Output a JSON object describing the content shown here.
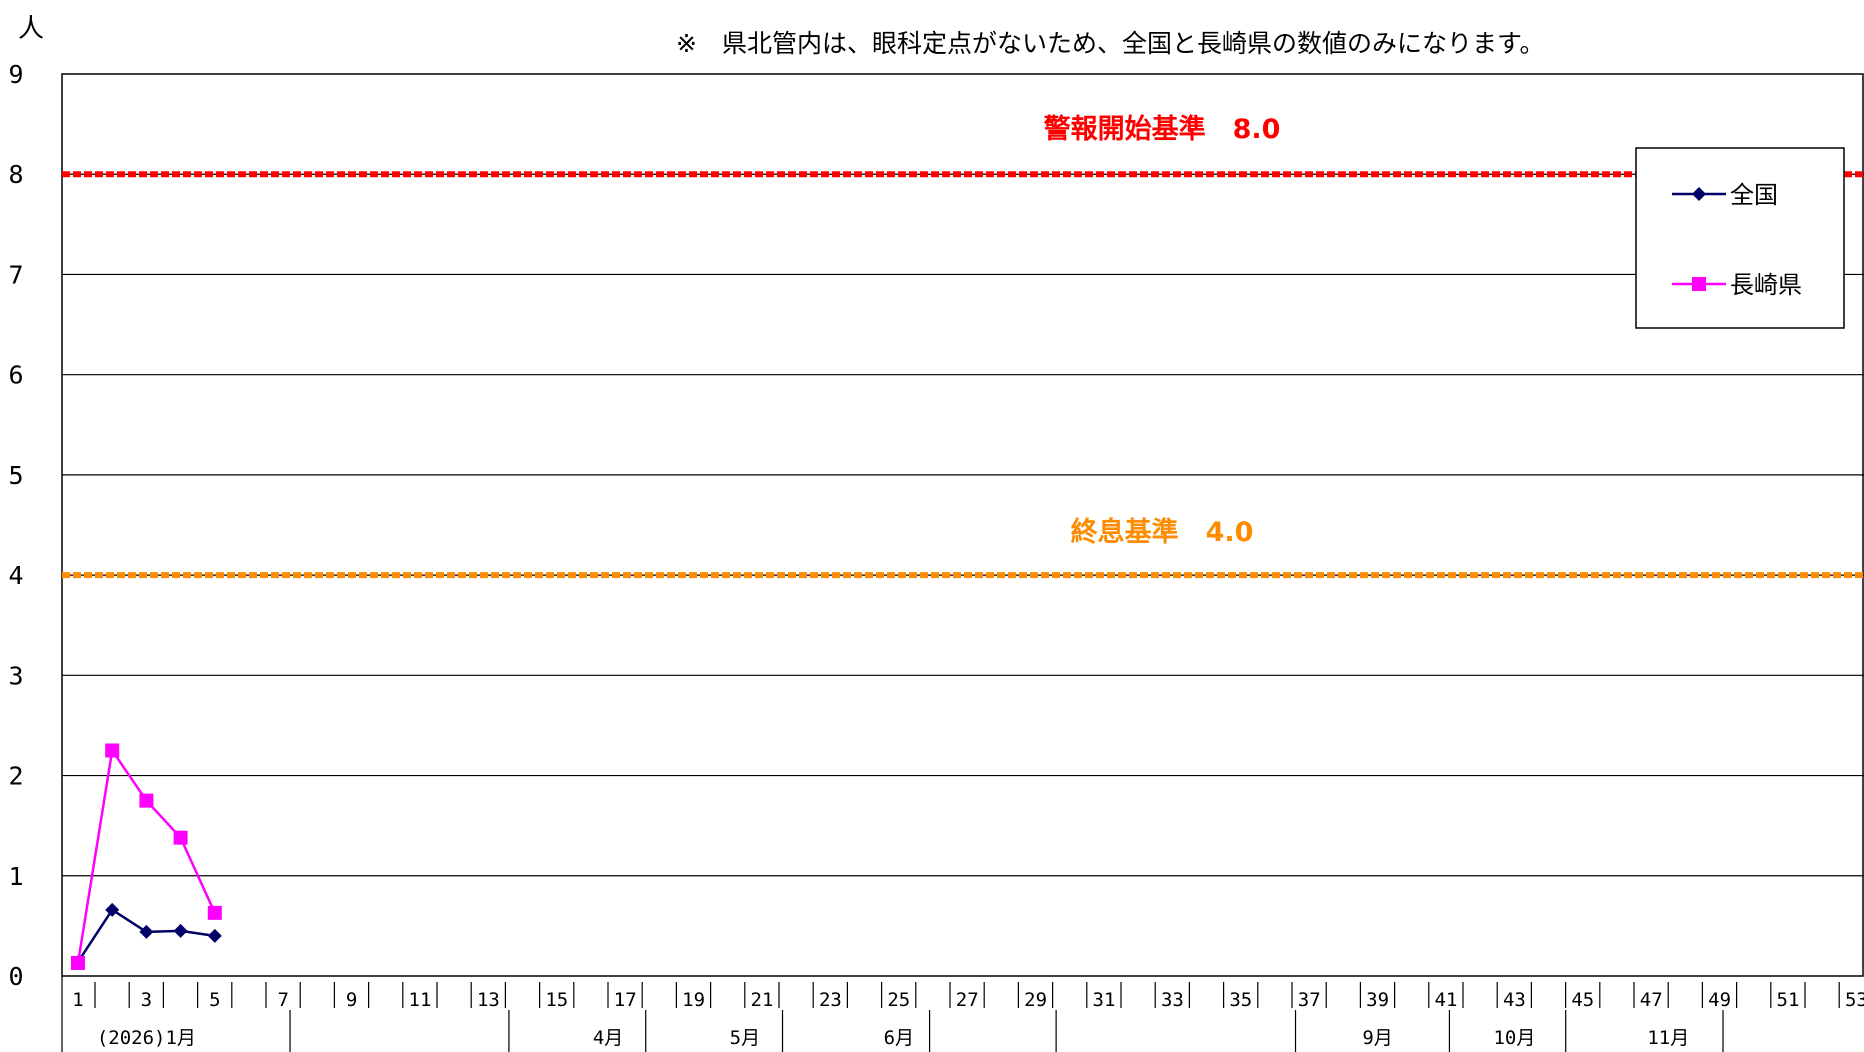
{
  "chart_data": {
    "type": "line",
    "y_unit": "人",
    "note": "※　県北管内は、眼科定点がないため、全国と長崎県の数値のみになります。",
    "ylim": [
      0,
      9
    ],
    "yticks": [
      0,
      1,
      2,
      3,
      4,
      5,
      6,
      7,
      8,
      9
    ],
    "x_range": [
      1,
      53
    ],
    "xtick_labels": [
      1,
      3,
      5,
      7,
      9,
      11,
      13,
      15,
      17,
      19,
      21,
      23,
      25,
      27,
      29,
      31,
      33,
      35,
      37,
      39,
      41,
      43,
      45,
      47,
      49,
      51,
      53
    ],
    "month_labels": [
      {
        "label": "(2026)1月",
        "week": 3
      },
      {
        "label": "4月",
        "week": 16.5
      },
      {
        "label": "5月",
        "week": 20.5
      },
      {
        "label": "6月",
        "week": 25
      },
      {
        "label": "9月",
        "week": 39
      },
      {
        "label": "10月",
        "week": 43
      },
      {
        "label": "11月",
        "week": 47.5
      }
    ],
    "grid": true,
    "legend_position": "top-right",
    "series": [
      {
        "name": "全国",
        "color": "#000066",
        "marker": "diamond",
        "x": [
          1,
          2,
          3,
          4,
          5
        ],
        "values": [
          0.14,
          0.66,
          0.44,
          0.45,
          0.4
        ]
      },
      {
        "name": "長崎県",
        "color": "#ff00ff",
        "marker": "square",
        "x": [
          1,
          2,
          3,
          4,
          5
        ],
        "values": [
          0.13,
          2.25,
          1.75,
          1.38,
          0.63
        ]
      }
    ],
    "reference_lines": [
      {
        "label": "警報開始基準　8.0",
        "value": 8.0,
        "color": "#ff0000"
      },
      {
        "label": "終息基準　4.0",
        "value": 4.0,
        "color": "#ff8c00"
      }
    ]
  }
}
